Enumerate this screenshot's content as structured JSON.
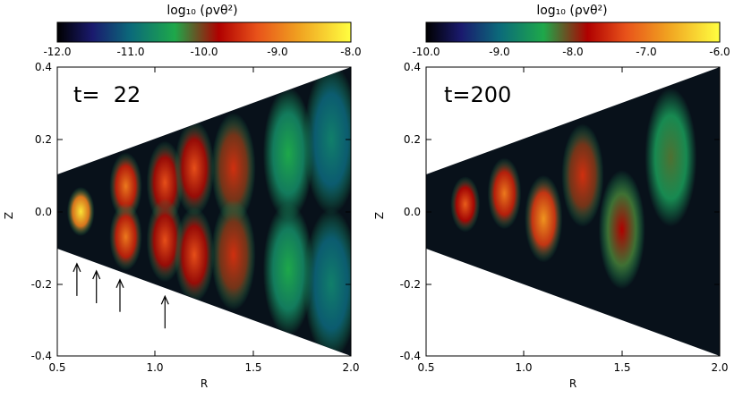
{
  "chart_data": [
    {
      "type": "heatmap",
      "panel_label": "t=  22",
      "colorbar": {
        "label": "log₁₀ (ρvθ²)",
        "ticks": [
          "-12.0",
          "-11.0",
          "-10.0",
          "-9.0",
          "-8.0"
        ],
        "range": [
          -12.0,
          -8.0
        ]
      },
      "xlabel": "R",
      "ylabel": "Z",
      "xlim": [
        0.5,
        2.0
      ],
      "ylim": [
        -0.4,
        0.4
      ],
      "xticks": [
        "0.5",
        "1.0",
        "1.5",
        "2.0"
      ],
      "yticks": [
        "-0.4",
        "-0.2",
        "0.0",
        "0.2",
        "0.4"
      ],
      "wedge_half_angle_deg": 11.3,
      "arrows_at_R": [
        0.6,
        0.7,
        0.82,
        1.05
      ],
      "features": [
        {
          "R": 0.62,
          "Z": 0.0,
          "value": -8.2
        },
        {
          "R": 0.85,
          "Z": 0.07,
          "value": -9.0
        },
        {
          "R": 0.85,
          "Z": -0.07,
          "value": -9.0
        },
        {
          "R": 1.05,
          "Z": 0.08,
          "value": -9.3
        },
        {
          "R": 1.05,
          "Z": -0.08,
          "value": -9.3
        },
        {
          "R": 1.2,
          "Z": 0.12,
          "value": -9.3
        },
        {
          "R": 1.2,
          "Z": -0.12,
          "value": -9.3
        },
        {
          "R": 1.4,
          "Z": 0.12,
          "value": -9.5
        },
        {
          "R": 1.4,
          "Z": -0.12,
          "value": -9.5
        },
        {
          "R": 1.68,
          "Z": 0.16,
          "value": -10.4
        },
        {
          "R": 1.68,
          "Z": -0.16,
          "value": -10.4
        },
        {
          "R": 1.9,
          "Z": 0.2,
          "value": -10.8
        },
        {
          "R": 1.9,
          "Z": -0.2,
          "value": -10.8
        }
      ]
    },
    {
      "type": "heatmap",
      "panel_label": "t=200",
      "colorbar": {
        "label": "log₁₀ (ρvθ²)",
        "ticks": [
          "-10.0",
          "-9.0",
          "-8.0",
          "-7.0",
          "-6.0"
        ],
        "range": [
          -10.0,
          -6.0
        ]
      },
      "xlabel": "R",
      "ylabel": "Z",
      "xlim": [
        0.5,
        2.0
      ],
      "ylim": [
        -0.4,
        0.4
      ],
      "xticks": [
        "0.5",
        "1.0",
        "1.5",
        "2.0"
      ],
      "yticks": [
        "-0.4",
        "-0.2",
        "0.0",
        "0.2",
        "0.4"
      ],
      "wedge_half_angle_deg": 11.3,
      "features": [
        {
          "R": 0.7,
          "Z": 0.02,
          "value": -7.2
        },
        {
          "R": 0.9,
          "Z": 0.05,
          "value": -7.0
        },
        {
          "R": 1.1,
          "Z": -0.02,
          "value": -6.8
        },
        {
          "R": 1.3,
          "Z": 0.1,
          "value": -7.5
        },
        {
          "R": 1.5,
          "Z": -0.05,
          "value": -7.8
        },
        {
          "R": 1.75,
          "Z": 0.15,
          "value": -8.2
        }
      ]
    }
  ]
}
